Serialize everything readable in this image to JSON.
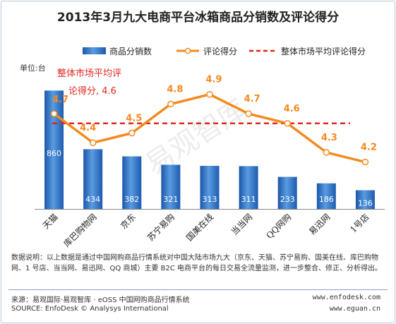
{
  "chart_data": {
    "type": "bar",
    "title": "2013年3月九大电商平台冰箱商品分销数及评论得分",
    "ylabel": "单位:台",
    "categories": [
      "天猫",
      "库巴购物网",
      "京东",
      "苏宁易购",
      "国美在线",
      "当当网",
      "QQ网购",
      "易迅网",
      "1号店"
    ],
    "series": [
      {
        "name": "商品分销数",
        "type": "bar",
        "values": [
          860,
          434,
          382,
          321,
          313,
          311,
          233,
          186,
          136
        ],
        "color": "#2e75c8"
      },
      {
        "name": "评论得分",
        "type": "line",
        "values": [
          4.7,
          4.4,
          4.5,
          4.8,
          4.9,
          4.7,
          4.6,
          4.3,
          4.2
        ],
        "color": "#f58a1f"
      },
      {
        "name": "整体市场平均评论得分",
        "type": "line",
        "value": 4.6,
        "color": "#e0261f"
      }
    ],
    "avg_annotation_line1": "整体市场平均评",
    "avg_annotation_line2": "论得分, 4.6",
    "legend_position": "top",
    "grid": false,
    "watermark": "易观智库"
  },
  "note": "数据说明：以上数据是通过中国网购商品行情系统对中国大陆市场九大（京东、天猫、苏宁易购、国美在线、库巴购物网、1 号店、当当网、易迅网、QQ 商城）主要 B2C 电商平台的每日交易全流量监测，进一步整合、修正、分析得出。",
  "footer": {
    "source_cn": "来源：易观国际·易观智库 · eOSS 中国网购商品行情系统",
    "source_en": "SOURCE: EnfoDesk © Analysys International",
    "url1": "www.enfodesk.com",
    "url2": "www.eguan.cn"
  }
}
